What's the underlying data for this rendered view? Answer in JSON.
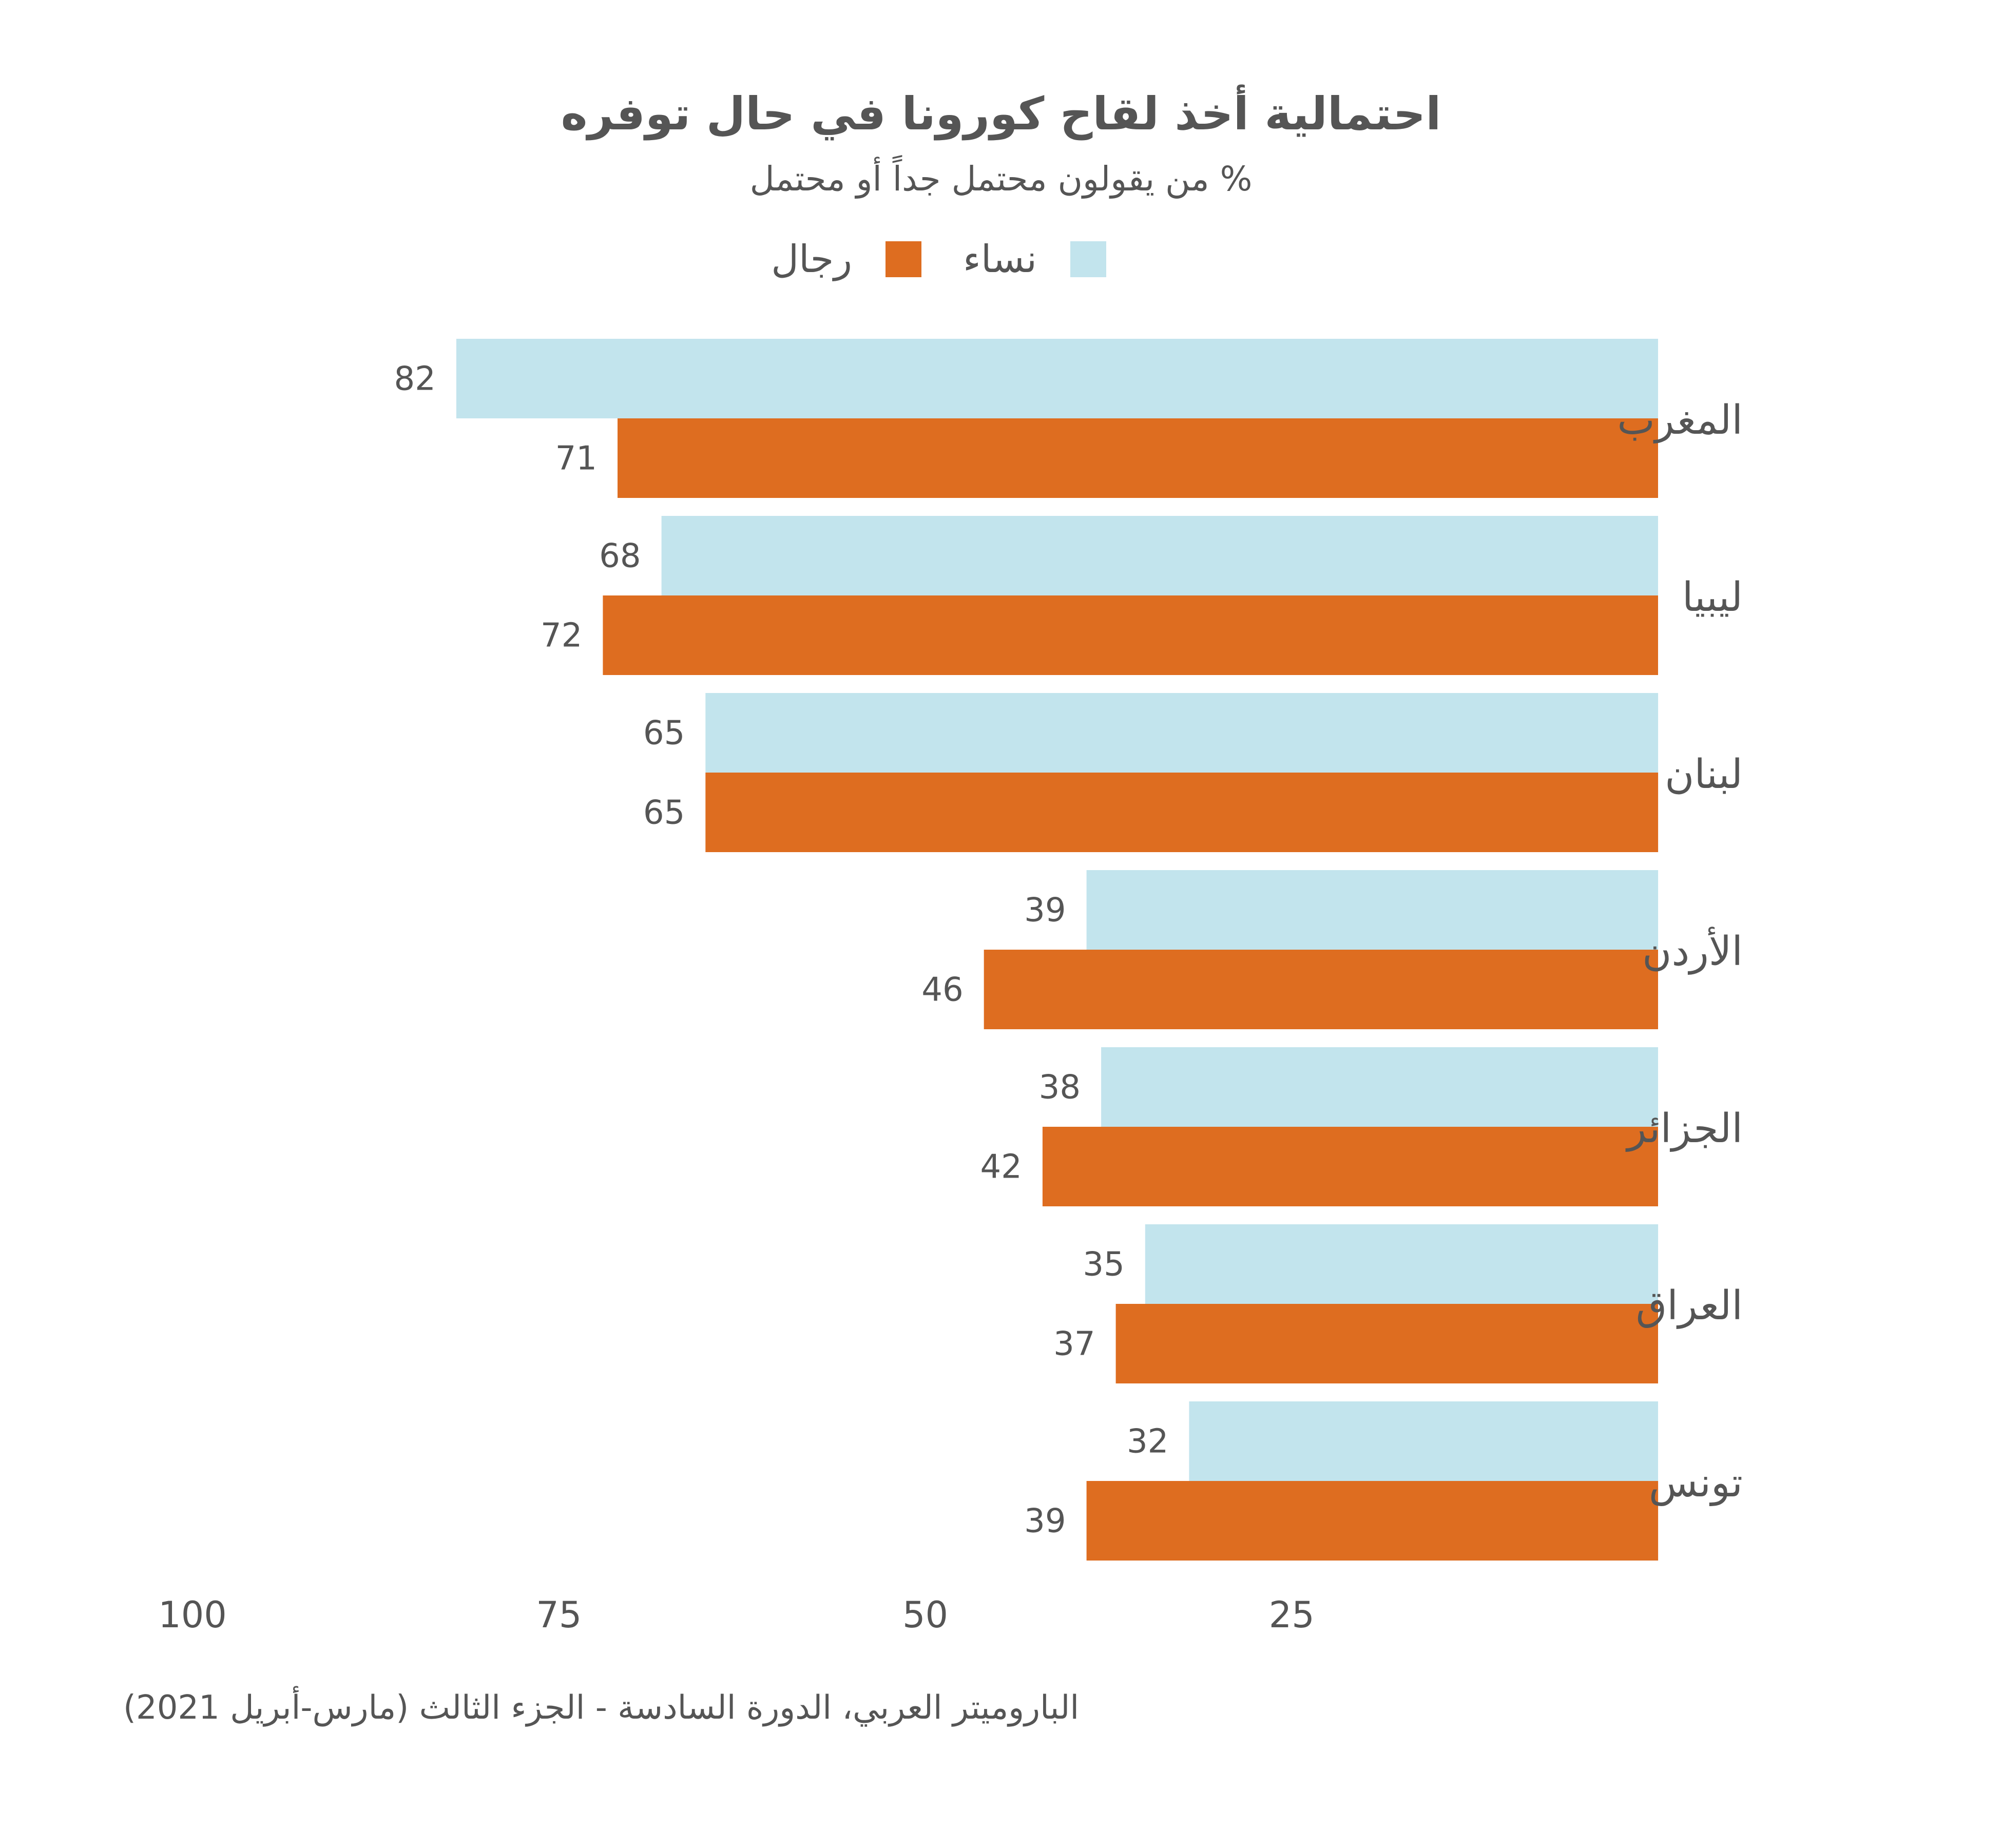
{
  "chart_data": {
    "type": "bar",
    "orientation": "horizontal",
    "title": "احتمالية أخذ لقاح كورونا في حال توفره",
    "subtitle": "% من يقولون محتمل جداً أو محتمل",
    "categories": [
      "المغرب",
      "ليبيا",
      "لبنان",
      "الأردن",
      "الجزائر",
      "العراق",
      "تونس"
    ],
    "series": [
      {
        "name": "نساء",
        "color": "#c2e4ed",
        "values": [
          82,
          68,
          65,
          39,
          38,
          35,
          32
        ]
      },
      {
        "name": "رجال",
        "color": "#de6d20",
        "values": [
          71,
          72,
          65,
          46,
          42,
          37,
          39
        ]
      }
    ],
    "x_ticks": [
      "100",
      "75",
      "50",
      "25"
    ],
    "xlim": [
      0,
      100
    ],
    "x_axis_direction": "reversed",
    "legend_position": "top-center",
    "grid": false,
    "data_labels": true
  },
  "source": "الباروميتر العربي، الدورة السادسة - الجزء الثالث (مارس-أبريل 2021)"
}
